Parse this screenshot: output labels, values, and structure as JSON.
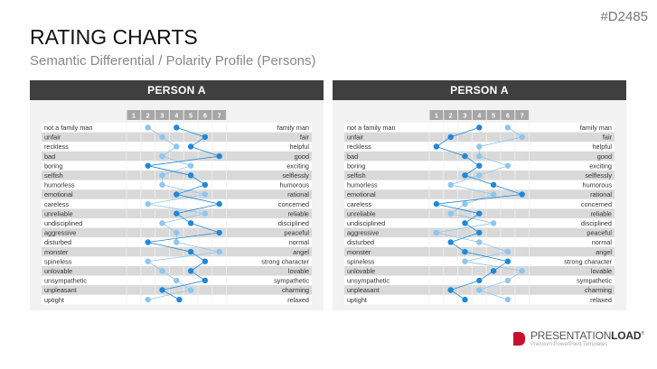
{
  "slide": {
    "code": "#D2485",
    "title": "RATING CHARTS",
    "subtitle": "Semantic Differential / Polarity Profile (Persons)"
  },
  "logo": {
    "name_light": "PRESENTATION",
    "name_bold": "LOAD",
    "registered": "®",
    "tagline": "Premium PowerPoint Templates"
  },
  "colors": {
    "dark_series": "#1f88d9",
    "light_series": "#8ec6ee",
    "header": "#3f3f3f",
    "scale_cell": "#a6a6a6",
    "stripe": "#d9d9d9"
  },
  "chart_data": [
    {
      "type": "line",
      "title": "PERSON A",
      "scale": [
        "1",
        "2",
        "3",
        "4",
        "5",
        "6",
        "7"
      ],
      "left_labels": [
        "not a family man",
        "unfair",
        "reckless",
        "bad",
        "boring",
        "selfish",
        "humorless",
        "emotional",
        "careless",
        "unreliable",
        "undisciplined",
        "aggressive",
        "disturbed",
        "monster",
        "spineless",
        "unlovable",
        "unsympathetic",
        "unpleasant",
        "uptight"
      ],
      "right_labels": [
        "family man",
        "fair",
        "helpful",
        "good",
        "exciting",
        "selflessly",
        "humorous",
        "rational",
        "concerned",
        "reliable",
        "disciplined",
        "peaceful",
        "normal",
        "angel",
        "strong character",
        "lovable",
        "sympathetic",
        "charming",
        "relaxed"
      ],
      "series": [
        {
          "color": "#1f88d9",
          "values": [
            4,
            6,
            5,
            7,
            2,
            5,
            6,
            4,
            7,
            4,
            5,
            7,
            2,
            5,
            6,
            5,
            6,
            3,
            4.2
          ]
        },
        {
          "color": "#8ec6ee",
          "values": [
            2,
            3,
            4,
            3,
            5,
            3,
            3,
            6,
            2,
            6,
            3,
            4,
            4,
            7,
            2,
            3,
            4,
            5,
            2
          ]
        }
      ]
    },
    {
      "type": "line",
      "title": "PERSON A",
      "scale": [
        "1",
        "2",
        "3",
        "4",
        "5",
        "6",
        "7"
      ],
      "left_labels": [
        "not a family man",
        "unfair",
        "reckless",
        "bad",
        "boring",
        "selfish",
        "humorless",
        "emotional",
        "careless",
        "unreliable",
        "undisciplined",
        "aggressive",
        "disturbed",
        "monster",
        "spineless",
        "unlovable",
        "unsympathetic",
        "unpleasant",
        "uptight"
      ],
      "right_labels": [
        "family man",
        "fair",
        "helpful",
        "good",
        "exciting",
        "selflessly",
        "humorous",
        "rational",
        "concerned",
        "reliable",
        "disciplined",
        "peaceful",
        "normal",
        "angel",
        "strong character",
        "lovable",
        "sympathetic",
        "charming",
        "relaxed"
      ],
      "series": [
        {
          "color": "#1f88d9",
          "values": [
            4,
            2,
            1,
            3,
            4,
            3,
            5,
            7,
            1,
            4,
            3,
            4,
            2,
            3,
            6,
            5,
            4,
            2,
            3
          ]
        },
        {
          "color": "#8ec6ee",
          "values": [
            6,
            7,
            4,
            4,
            6,
            4,
            2,
            5,
            3,
            2,
            5,
            1,
            4,
            6,
            3,
            7,
            6,
            4,
            6
          ]
        }
      ]
    }
  ]
}
